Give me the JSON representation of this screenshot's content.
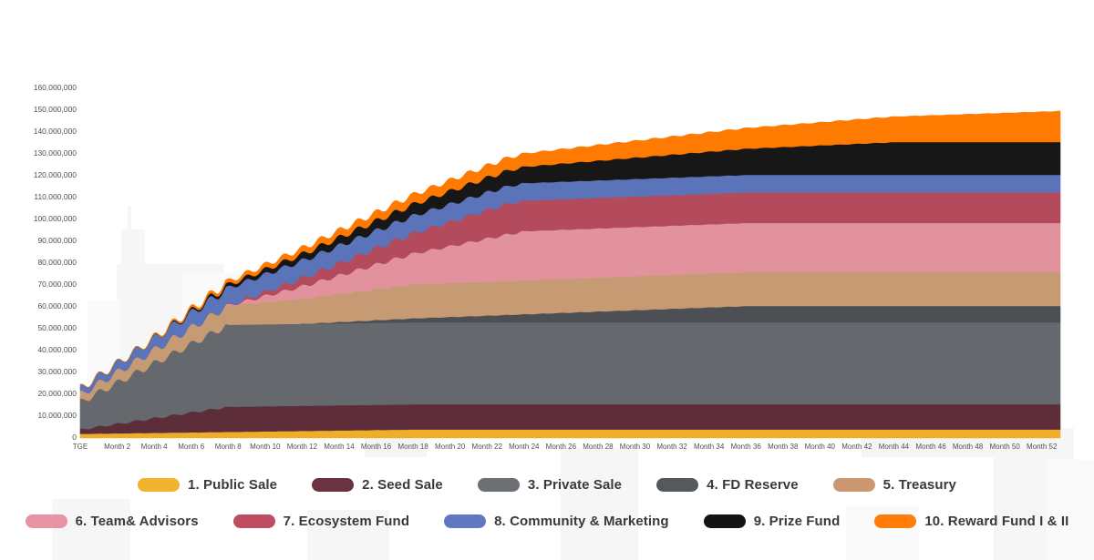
{
  "page": {
    "background_color": "#ffffff"
  },
  "chart_data": {
    "type": "area",
    "stacked": true,
    "title": "",
    "xlabel": "",
    "ylabel": "",
    "unit": "tokens",
    "x_axis": {
      "first_label": "TGE",
      "tick_label_prefix": "Month ",
      "tick_interval_months": 2,
      "last_labeled_month": 52,
      "months_rendered": 53,
      "tick_color": "#4f4f4f"
    },
    "y_axis": {
      "min": 0,
      "max": 160000000,
      "tick_step": 10000000,
      "tick_labels": [
        "0",
        "10,000,000",
        "20,000,000",
        "30,000,000",
        "40,000,000",
        "50,000,000",
        "60,000,000",
        "70,000,000",
        "80,000,000",
        "90,000,000",
        "100,000,000",
        "110,000,000",
        "120,000,000",
        "130,000,000",
        "140,000,000",
        "150,000,000",
        "160,000,000"
      ],
      "tick_color": "#4f4f4f",
      "grid": false
    },
    "legend_position": "bottom",
    "legend_rows": [
      5,
      5
    ],
    "total_supply_at_end": 150500000,
    "series": [
      {
        "name": "1. Public Sale",
        "color": "#EFAE2A",
        "legend_color": "#F2B32E",
        "total": 3500000,
        "tge_unlock": 1500000,
        "vest_start_month": 0,
        "vest_end_month": 18
      },
      {
        "name": "2. Seed Sale",
        "color": "#5D2E39",
        "legend_color": "#6B323F",
        "total": 11500000,
        "tge_unlock": 2000000,
        "vest_start_month": 0,
        "vest_end_month": 8
      },
      {
        "name": "3. Private Sale",
        "color": "#65686D",
        "legend_color": "#6C6F74",
        "total": 37500000,
        "tge_unlock": 12500000,
        "vest_start_month": 0,
        "vest_end_month": 8
      },
      {
        "name": "4. FD Reserve",
        "color": "#4C4F54",
        "legend_color": "#55585D",
        "total": 7500000,
        "tge_unlock": 0,
        "vest_start_month": 12,
        "vest_end_month": 36
      },
      {
        "name": "5. Treasury",
        "color": "#C69A73",
        "legend_color": "#CA9770",
        "total": 15500000,
        "tge_unlock": 3500000,
        "vest_start_month": 0,
        "vest_end_month": 18
      },
      {
        "name": "6. Team& Advisors",
        "color": "#E2929D",
        "legend_color": "#E694A1",
        "total": 22500000,
        "tge_unlock": 0,
        "vest_start_month": 8,
        "vest_end_month": 24
      },
      {
        "name": "7. Ecosystem Fund",
        "color": "#B44B5C",
        "legend_color": "#BE4D61",
        "total": 14000000,
        "tge_unlock": 0,
        "vest_start_month": 8,
        "vest_end_month": 23
      },
      {
        "name": "8. Community & Marketing",
        "color": "#5B73B8",
        "legend_color": "#6277C2",
        "total": 8000000,
        "tge_unlock": 2500000,
        "vest_start_month": 0,
        "vest_end_month": 8
      },
      {
        "name": "9. Prize Fund",
        "color": "#171717",
        "legend_color": "#141414",
        "total": 15000000,
        "tge_unlock": 0,
        "vest_start_month": 4,
        "vest_end_month": 44
      },
      {
        "name": "10. Reward Fund I & II",
        "color": "#FF7A00",
        "legend_color": "#FF7D08",
        "total": 15500000,
        "tge_unlock": 0,
        "vest_start_month": 3,
        "vest_end_month": 58
      }
    ]
  },
  "watermark": {
    "color_light": "#f6f6f7",
    "color_lighter": "#fafafa"
  }
}
